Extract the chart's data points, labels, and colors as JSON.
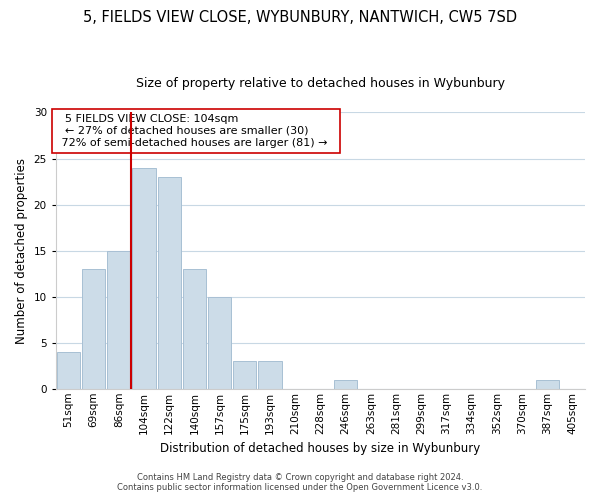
{
  "title": "5, FIELDS VIEW CLOSE, WYBUNBURY, NANTWICH, CW5 7SD",
  "subtitle": "Size of property relative to detached houses in Wybunbury",
  "xlabel": "Distribution of detached houses by size in Wybunbury",
  "ylabel": "Number of detached properties",
  "bar_labels": [
    "51sqm",
    "69sqm",
    "86sqm",
    "104sqm",
    "122sqm",
    "140sqm",
    "157sqm",
    "175sqm",
    "193sqm",
    "210sqm",
    "228sqm",
    "246sqm",
    "263sqm",
    "281sqm",
    "299sqm",
    "317sqm",
    "334sqm",
    "352sqm",
    "370sqm",
    "387sqm",
    "405sqm"
  ],
  "bar_values": [
    4,
    13,
    15,
    24,
    23,
    13,
    10,
    3,
    3,
    0,
    0,
    1,
    0,
    0,
    0,
    0,
    0,
    0,
    0,
    1,
    0
  ],
  "bar_color": "#ccdce8",
  "bar_edge_color": "#a8c0d4",
  "vline_color": "#cc0000",
  "ylim": [
    0,
    30
  ],
  "yticks": [
    0,
    5,
    10,
    15,
    20,
    25,
    30
  ],
  "annotation_title": "5 FIELDS VIEW CLOSE: 104sqm",
  "annotation_line1": "← 27% of detached houses are smaller (30)",
  "annotation_line2": "72% of semi-detached houses are larger (81) →",
  "annotation_box_color": "#ffffff",
  "annotation_box_edge": "#cc0000",
  "footnote1": "Contains HM Land Registry data © Crown copyright and database right 2024.",
  "footnote2": "Contains public sector information licensed under the Open Government Licence v3.0.",
  "background_color": "#ffffff",
  "grid_color": "#c8d8e4",
  "title_fontsize": 10.5,
  "subtitle_fontsize": 9,
  "ylabel_fontsize": 8.5,
  "xlabel_fontsize": 8.5,
  "tick_fontsize": 7.5,
  "annot_fontsize": 8,
  "footnote_fontsize": 6
}
